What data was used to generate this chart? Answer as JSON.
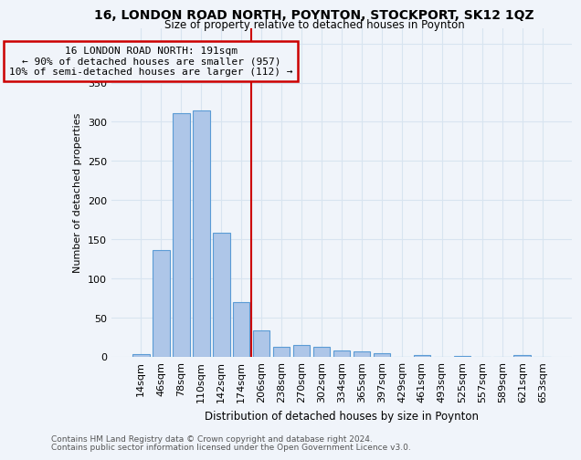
{
  "title1": "16, LONDON ROAD NORTH, POYNTON, STOCKPORT, SK12 1QZ",
  "title2": "Size of property relative to detached houses in Poynton",
  "xlabel": "Distribution of detached houses by size in Poynton",
  "ylabel": "Number of detached properties",
  "bar_labels": [
    "14sqm",
    "46sqm",
    "78sqm",
    "110sqm",
    "142sqm",
    "174sqm",
    "206sqm",
    "238sqm",
    "270sqm",
    "302sqm",
    "334sqm",
    "365sqm",
    "397sqm",
    "429sqm",
    "461sqm",
    "493sqm",
    "525sqm",
    "557sqm",
    "589sqm",
    "621sqm",
    "653sqm"
  ],
  "bar_values": [
    3,
    136,
    311,
    315,
    158,
    70,
    33,
    12,
    15,
    12,
    8,
    7,
    4,
    0,
    2,
    0,
    1,
    0,
    0,
    2,
    0
  ],
  "bar_color": "#aec6e8",
  "bar_edge_color": "#5b9bd5",
  "vline_x": 5.5,
  "vline_color": "#cc0000",
  "annotation_lines": [
    "16 LONDON ROAD NORTH: 191sqm",
    "← 90% of detached houses are smaller (957)",
    "10% of semi-detached houses are larger (112) →"
  ],
  "annotation_box_color": "#cc0000",
  "ylim": [
    0,
    420
  ],
  "yticks": [
    0,
    50,
    100,
    150,
    200,
    250,
    300,
    350,
    400
  ],
  "footer1": "Contains HM Land Registry data © Crown copyright and database right 2024.",
  "footer2": "Contains public sector information licensed under the Open Government Licence v3.0.",
  "bg_color": "#f0f4fa",
  "grid_color": "#d8e4f0"
}
